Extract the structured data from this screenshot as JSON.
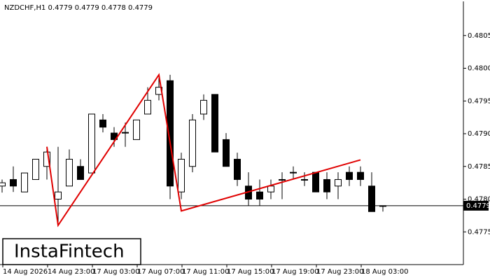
{
  "chart_data": {
    "type": "candlestick",
    "title": "NZDCHF,H1  0.4779 0.4779 0.4778 0.4779",
    "categories": [
      "14 Aug 2026",
      null,
      null,
      null,
      "14 Aug 23:00",
      null,
      null,
      null,
      "17 Aug 03:00",
      null,
      null,
      null,
      "17 Aug 07:00",
      null,
      null,
      null,
      "17 Aug 11:00",
      null,
      null,
      null,
      "17 Aug 15:00",
      null,
      null,
      null,
      "17 Aug 19:00",
      null,
      null,
      null,
      "17 Aug 23:00",
      null,
      null,
      null,
      "18 Aug 03:00",
      null,
      null
    ],
    "open": [
      0.4782,
      0.4783,
      0.47811,
      0.4783,
      0.4785,
      0.478,
      0.4782,
      0.4785,
      0.4784,
      0.47921,
      0.47901,
      0.47901,
      0.47891,
      0.4793,
      0.4796,
      0.47981,
      0.47811,
      0.4785,
      0.4793,
      0.4796,
      0.47891,
      0.47861,
      0.4782,
      0.47811,
      0.47811,
      0.47829,
      0.47841,
      0.4783,
      0.47841,
      0.4783,
      0.4782,
      0.47841,
      0.47841,
      0.4782,
      0.4779
    ],
    "high": [
      0.4783,
      0.4785,
      0.4784,
      0.47861,
      0.4788,
      0.4788,
      0.47876,
      0.47861,
      0.4793,
      0.4793,
      0.4791,
      0.47917,
      0.47921,
      0.47971,
      0.47985,
      0.4799,
      0.47871,
      0.4793,
      0.4796,
      0.4796,
      0.47901,
      0.47871,
      0.47841,
      0.4783,
      0.4783,
      0.47841,
      0.4785,
      0.47841,
      0.47841,
      0.47841,
      0.47841,
      0.4785,
      0.4785,
      0.47841,
      0.4779
    ],
    "low": [
      0.4781,
      0.47811,
      0.47811,
      0.4783,
      0.4783,
      0.47763,
      0.4782,
      0.4783,
      0.4784,
      0.47902,
      0.4788,
      0.4788,
      0.47891,
      0.4793,
      0.47951,
      0.478,
      0.478,
      0.47841,
      0.47921,
      0.47872,
      0.4785,
      0.4782,
      0.4779,
      0.4779,
      0.478,
      0.478,
      0.4783,
      0.4782,
      0.47811,
      0.478,
      0.478,
      0.4782,
      0.4782,
      0.47781,
      0.47781
    ],
    "close": [
      0.47825,
      0.4782,
      0.4784,
      0.47861,
      0.47872,
      0.47811,
      0.47861,
      0.4783,
      0.4793,
      0.4791,
      0.47891,
      0.47902,
      0.47921,
      0.47951,
      0.47971,
      0.4782,
      0.47861,
      0.47921,
      0.47951,
      0.47872,
      0.4785,
      0.4783,
      0.478,
      0.478,
      0.4782,
      0.4783,
      0.47841,
      0.4783,
      0.47811,
      0.47811,
      0.4783,
      0.4783,
      0.4783,
      0.47781,
      0.4779
    ],
    "up_color": "#ffffff",
    "down_color": "#000000",
    "ylim": [
      0.477,
      0.481
    ],
    "yticks": [
      0.4775,
      {
        "value": 0.478,
        "label": "0.4780"
      },
      0.4785,
      {
        "value": 0.479,
        "label": "0.4790"
      },
      0.4795,
      {
        "value": 0.48,
        "label": "0.4800"
      },
      0.4805
    ],
    "last_price": {
      "value": 0.4779,
      "label": "0.4779"
    },
    "pattern": {
      "color": "#e00000",
      "category_index": [
        4,
        5,
        14,
        16,
        32
      ],
      "values": [
        0.4788,
        0.4776,
        0.4799,
        0.47782,
        0.4786
      ]
    },
    "watermark": "InstaFintech"
  }
}
